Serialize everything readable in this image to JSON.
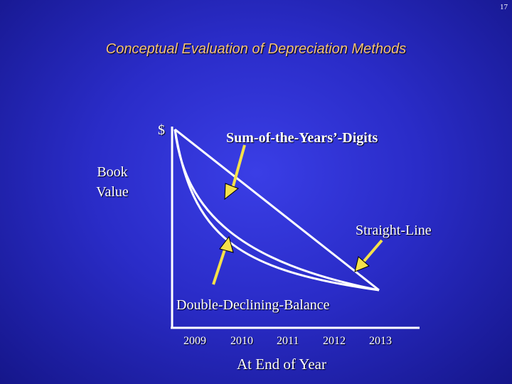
{
  "page_number": "17",
  "title": "Conceptual Evaluation of Depreciation Methods",
  "y_axis_symbol": "$",
  "y_axis_label": "Book Value",
  "x_axis_label": "At End of Year",
  "years": [
    "2009",
    "2010",
    "2011",
    "2012",
    "2013"
  ],
  "curves": {
    "sum_of_years_digits": "Sum-of-the-Years’-Digits",
    "straight_line": "Straight-Line",
    "double_declining_balance": "Double-Declining-Balance"
  },
  "colors": {
    "background": "#2a2cc8",
    "title": "#f4c27a",
    "arrow": "#f5e14a",
    "line": "#ffffff"
  }
}
